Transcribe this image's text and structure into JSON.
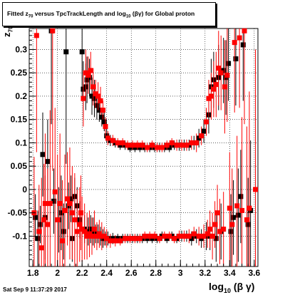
{
  "title": {
    "prefix": "Fitted  z",
    "sub1": "70",
    "mid": " versus TpcTrackLength and log",
    "sub2": "10",
    "suffix": " (βγ) for Global proton"
  },
  "ylabel": {
    "main": "z",
    "sub": "70"
  },
  "xlabel": {
    "main": "log",
    "sub": "10",
    "suffix": " (β γ)"
  },
  "datestamp": "Sat Sep  9 11:37:29 2017",
  "chart_data": {
    "type": "scatter",
    "xlim": [
      1.77,
      3.63
    ],
    "ylim": [
      -0.165,
      0.345
    ],
    "grid": true,
    "xticks": [
      1.8,
      2,
      2.2,
      2.4,
      2.6,
      2.8,
      3,
      3.2,
      3.4,
      3.6
    ],
    "xtick_labels": [
      "1.8",
      "2",
      "2.2",
      "2.4",
      "2.6",
      "2.8",
      "3",
      "3.2",
      "3.4",
      "3.6"
    ],
    "yticks": [
      -0.1,
      -0.05,
      0,
      0.05,
      0.1,
      0.15,
      0.2,
      0.25,
      0.3
    ],
    "ytick_labels": [
      "-0.1",
      "-0.05",
      "0",
      "0.05",
      "0.1",
      "0.15",
      "0.2",
      "0.25",
      "0.3"
    ],
    "series": [
      {
        "color": "#000000",
        "marker": "square",
        "points": [
          [
            1.82,
            -0.06,
            0.05
          ],
          [
            1.84,
            -0.105,
            0.06
          ],
          [
            1.86,
            -0.075,
            0.04
          ],
          [
            1.88,
            0.075,
            0.09
          ],
          [
            1.9,
            -0.06,
            0.09
          ],
          [
            1.92,
            0.06,
            0.09
          ],
          [
            1.95,
            0.34,
            0.2
          ],
          [
            1.97,
            -0.025,
            0.07
          ],
          [
            2.01,
            -0.065,
            0.07
          ],
          [
            2.03,
            -0.05,
            0.08
          ],
          [
            2.05,
            -0.09,
            0.06
          ],
          [
            2.07,
            0.295,
            0.24
          ],
          [
            2.09,
            -0.035,
            0.05
          ],
          [
            2.11,
            -0.02,
            0.05
          ],
          [
            2.12,
            -0.105,
            0.05
          ],
          [
            2.14,
            -0.015,
            0.04
          ],
          [
            2.16,
            -0.035,
            0.04
          ],
          [
            2.18,
            -0.065,
            0.04
          ],
          [
            2.2,
            0.295,
            0.1
          ],
          [
            2.21,
            0.215,
            0.06
          ],
          [
            2.22,
            -0.085,
            0.03
          ],
          [
            2.23,
            0.22,
            0.05
          ],
          [
            2.24,
            0.235,
            0.05
          ],
          [
            2.25,
            -0.09,
            0.03
          ],
          [
            2.26,
            0.24,
            0.04
          ],
          [
            2.27,
            -0.085,
            0.03
          ],
          [
            2.28,
            0.2,
            0.04
          ],
          [
            2.29,
            -0.09,
            0.03
          ],
          [
            2.3,
            0.195,
            0.04
          ],
          [
            2.31,
            -0.095,
            0.02
          ],
          [
            2.32,
            0.18,
            0.03
          ],
          [
            2.33,
            -0.095,
            0.02
          ],
          [
            2.34,
            0.17,
            0.025
          ],
          [
            2.35,
            -0.1,
            0.02
          ],
          [
            2.36,
            0.155,
            0.02
          ],
          [
            2.37,
            -0.105,
            0.02
          ],
          [
            2.38,
            0.145,
            0.02
          ],
          [
            2.39,
            -0.105,
            0.015
          ],
          [
            2.4,
            0.115,
            0.015
          ],
          [
            2.41,
            -0.105,
            0.015
          ],
          [
            2.43,
            0.105,
            0.012
          ],
          [
            2.45,
            -0.105,
            0.012
          ],
          [
            2.47,
            0.1,
            0.01
          ],
          [
            2.49,
            -0.105,
            0.01
          ],
          [
            2.51,
            0.095,
            0.01
          ],
          [
            2.53,
            -0.105,
            0.01
          ],
          [
            2.55,
            0.095,
            0.01
          ],
          [
            2.57,
            -0.105,
            0.01
          ],
          [
            2.59,
            0.09,
            0.01
          ],
          [
            2.61,
            -0.105,
            0.01
          ],
          [
            2.63,
            0.09,
            0.01
          ],
          [
            2.65,
            -0.105,
            0.01
          ],
          [
            2.67,
            0.09,
            0.01
          ],
          [
            2.69,
            -0.105,
            0.01
          ],
          [
            2.71,
            0.09,
            0.01
          ],
          [
            2.73,
            -0.105,
            0.01
          ],
          [
            2.75,
            0.09,
            0.01
          ],
          [
            2.77,
            -0.105,
            0.01
          ],
          [
            2.79,
            0.09,
            0.01
          ],
          [
            2.81,
            -0.105,
            0.01
          ],
          [
            2.83,
            0.09,
            0.01
          ],
          [
            2.85,
            -0.1,
            0.01
          ],
          [
            2.87,
            0.09,
            0.01
          ],
          [
            2.89,
            -0.105,
            0.01
          ],
          [
            2.91,
            0.09,
            0.01
          ],
          [
            2.93,
            -0.1,
            0.01
          ],
          [
            2.95,
            0.095,
            0.01
          ],
          [
            2.97,
            -0.105,
            0.01
          ],
          [
            2.99,
            0.095,
            0.012
          ],
          [
            3.01,
            -0.1,
            0.012
          ],
          [
            3.03,
            0.095,
            0.012
          ],
          [
            3.05,
            -0.1,
            0.012
          ],
          [
            3.07,
            0.095,
            0.012
          ],
          [
            3.09,
            -0.105,
            0.015
          ],
          [
            3.11,
            0.1,
            0.015
          ],
          [
            3.13,
            -0.1,
            0.015
          ],
          [
            3.15,
            0.11,
            0.02
          ],
          [
            3.17,
            -0.105,
            0.02
          ],
          [
            3.19,
            0.125,
            0.025
          ],
          [
            3.21,
            -0.1,
            0.03
          ],
          [
            3.23,
            0.16,
            0.04
          ],
          [
            3.24,
            -0.1,
            0.03
          ],
          [
            3.25,
            0.22,
            0.06
          ],
          [
            3.27,
            0.235,
            0.06
          ],
          [
            3.29,
            -0.105,
            0.05
          ],
          [
            3.31,
            0.24,
            0.07
          ],
          [
            3.33,
            -0.09,
            0.06
          ],
          [
            3.35,
            0.255,
            0.07
          ],
          [
            3.37,
            0.24,
            0.08
          ],
          [
            3.39,
            0.27,
            0.08
          ],
          [
            3.41,
            -0.09,
            0.08
          ],
          [
            3.43,
            -0.06,
            0.08
          ],
          [
            3.45,
            0.28,
            0.1
          ],
          [
            3.47,
            -0.055,
            0.1
          ],
          [
            3.49,
            -0.015,
            0.1
          ],
          [
            3.51,
            0.31,
            0.12
          ],
          [
            3.55,
            -0.075,
            0.1
          ],
          [
            3.57,
            -0.045,
            0.15
          ]
        ]
      },
      {
        "color": "#ff0000",
        "marker": "square",
        "points": [
          [
            1.81,
            -0.05,
            0.12
          ],
          [
            1.83,
            0.33,
            0.25
          ],
          [
            1.85,
            -0.09,
            0.1
          ],
          [
            1.87,
            -0.125,
            0.15
          ],
          [
            1.89,
            -0.065,
            0.12
          ],
          [
            1.9,
            -0.03,
            0.15
          ],
          [
            1.92,
            -0.075,
            0.12
          ],
          [
            1.94,
            -0.03,
            0.2
          ],
          [
            1.96,
            0.34,
            0.3
          ],
          [
            1.98,
            -0.005,
            0.18
          ],
          [
            2.0,
            -0.065,
            0.14
          ],
          [
            2.02,
            -0.03,
            0.15
          ],
          [
            2.04,
            -0.11,
            0.13
          ],
          [
            2.06,
            -0.045,
            0.12
          ],
          [
            2.08,
            -0.02,
            0.1
          ],
          [
            2.1,
            -0.03,
            0.12
          ],
          [
            2.12,
            -0.05,
            0.1
          ],
          [
            2.14,
            -0.065,
            0.1
          ],
          [
            2.16,
            -0.09,
            0.09
          ],
          [
            2.18,
            -0.075,
            0.08
          ],
          [
            2.19,
            -0.05,
            0.08
          ],
          [
            2.2,
            -0.085,
            0.07
          ],
          [
            2.21,
            0.195,
            0.06
          ],
          [
            2.22,
            -0.09,
            0.06
          ],
          [
            2.23,
            0.25,
            0.05
          ],
          [
            2.24,
            -0.1,
            0.05
          ],
          [
            2.25,
            0.245,
            0.04
          ],
          [
            2.26,
            -0.095,
            0.05
          ],
          [
            2.27,
            0.255,
            0.04
          ],
          [
            2.28,
            -0.1,
            0.04
          ],
          [
            2.29,
            0.22,
            0.04
          ],
          [
            2.3,
            -0.085,
            0.04
          ],
          [
            2.31,
            0.205,
            0.03
          ],
          [
            2.32,
            -0.1,
            0.03
          ],
          [
            2.33,
            0.2,
            0.03
          ],
          [
            2.34,
            -0.095,
            0.03
          ],
          [
            2.35,
            0.19,
            0.03
          ],
          [
            2.36,
            -0.1,
            0.03
          ],
          [
            2.37,
            0.17,
            0.02
          ],
          [
            2.38,
            -0.1,
            0.02
          ],
          [
            2.39,
            0.135,
            0.02
          ],
          [
            2.4,
            -0.105,
            0.02
          ],
          [
            2.41,
            0.11,
            0.015
          ],
          [
            2.43,
            -0.11,
            0.015
          ],
          [
            2.45,
            0.105,
            0.012
          ],
          [
            2.47,
            -0.11,
            0.012
          ],
          [
            2.49,
            0.1,
            0.01
          ],
          [
            2.51,
            -0.11,
            0.01
          ],
          [
            2.53,
            0.1,
            0.01
          ],
          [
            2.55,
            -0.105,
            0.01
          ],
          [
            2.57,
            0.095,
            0.01
          ],
          [
            2.59,
            -0.105,
            0.01
          ],
          [
            2.61,
            0.095,
            0.01
          ],
          [
            2.63,
            -0.105,
            0.01
          ],
          [
            2.65,
            0.095,
            0.01
          ],
          [
            2.67,
            -0.105,
            0.01
          ],
          [
            2.69,
            0.095,
            0.01
          ],
          [
            2.71,
            -0.1,
            0.01
          ],
          [
            2.73,
            0.09,
            0.01
          ],
          [
            2.75,
            -0.1,
            0.01
          ],
          [
            2.77,
            0.095,
            0.01
          ],
          [
            2.79,
            -0.1,
            0.01
          ],
          [
            2.81,
            0.09,
            0.01
          ],
          [
            2.83,
            -0.105,
            0.01
          ],
          [
            2.85,
            0.09,
            0.01
          ],
          [
            2.87,
            -0.1,
            0.01
          ],
          [
            2.89,
            0.095,
            0.01
          ],
          [
            2.91,
            -0.1,
            0.01
          ],
          [
            2.93,
            0.1,
            0.01
          ],
          [
            2.95,
            -0.105,
            0.01
          ],
          [
            2.97,
            0.095,
            0.012
          ],
          [
            2.99,
            -0.1,
            0.012
          ],
          [
            3.01,
            0.095,
            0.012
          ],
          [
            3.03,
            -0.1,
            0.012
          ],
          [
            3.05,
            0.095,
            0.012
          ],
          [
            3.07,
            -0.1,
            0.015
          ],
          [
            3.09,
            0.1,
            0.015
          ],
          [
            3.11,
            -0.095,
            0.015
          ],
          [
            3.13,
            0.1,
            0.02
          ],
          [
            3.15,
            -0.1,
            0.02
          ],
          [
            3.17,
            0.115,
            0.02
          ],
          [
            3.19,
            -0.1,
            0.025
          ],
          [
            3.21,
            0.145,
            0.03
          ],
          [
            3.22,
            -0.095,
            0.03
          ],
          [
            3.23,
            0.195,
            0.04
          ],
          [
            3.24,
            -0.085,
            0.04
          ],
          [
            3.25,
            0.2,
            0.05
          ],
          [
            3.26,
            -0.1,
            0.05
          ],
          [
            3.27,
            0.215,
            0.06
          ],
          [
            3.28,
            -0.075,
            0.05
          ],
          [
            3.29,
            0.225,
            0.07
          ],
          [
            3.3,
            -0.05,
            0.06
          ],
          [
            3.31,
            0.26,
            0.08
          ],
          [
            3.32,
            -0.09,
            0.07
          ],
          [
            3.33,
            0.25,
            0.08
          ],
          [
            3.35,
            -0.085,
            0.08
          ],
          [
            3.36,
            0.22,
            0.1
          ],
          [
            3.38,
            0.245,
            0.1
          ],
          [
            3.4,
            -0.04,
            0.12
          ],
          [
            3.42,
            -0.075,
            0.12
          ],
          [
            3.44,
            0.315,
            0.15
          ],
          [
            3.46,
            -0.035,
            0.15
          ],
          [
            3.48,
            0.325,
            0.15
          ],
          [
            3.5,
            -0.045,
            0.2
          ],
          [
            3.52,
            0.34,
            0.2
          ],
          [
            3.54,
            -0.065,
            0.2
          ],
          [
            3.56,
            -0.04,
            0.25
          ],
          [
            3.61,
            0.0,
            0.3
          ]
        ]
      }
    ]
  }
}
